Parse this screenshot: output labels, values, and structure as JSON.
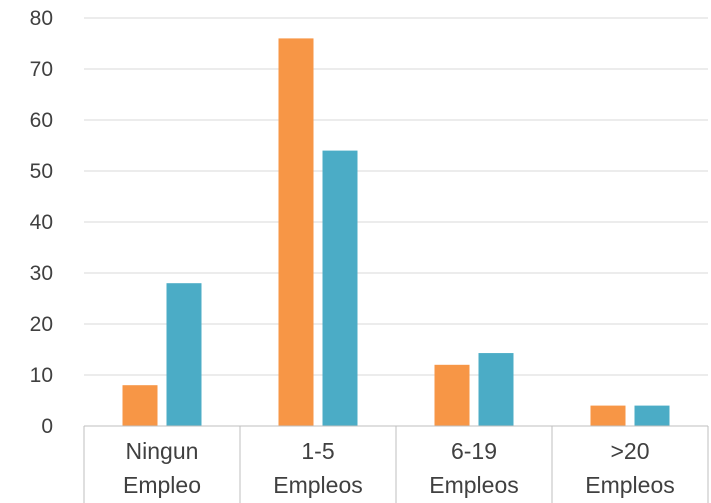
{
  "chart_data": {
    "type": "bar",
    "categories": [
      [
        "Ningun",
        "Empleo"
      ],
      [
        "1-5",
        "Empleos"
      ],
      [
        "6-19",
        "Empleos"
      ],
      [
        ">20",
        "Empleos"
      ]
    ],
    "series": [
      {
        "values": [
          8,
          76,
          12,
          4
        ],
        "color": "#F79646"
      },
      {
        "values": [
          28,
          54,
          14.3,
          4
        ],
        "color": "#4BACC6"
      }
    ],
    "ylim": [
      0,
      80
    ],
    "yticks": [
      "0",
      "10",
      "20",
      "30",
      "40",
      "50",
      "60",
      "70",
      "80"
    ],
    "grid": true,
    "legend": "none",
    "title": "",
    "xlabel": "",
    "ylabel": ""
  }
}
